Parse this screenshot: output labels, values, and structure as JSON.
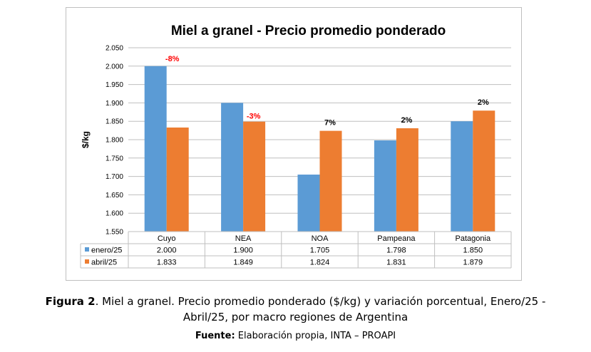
{
  "chart_data": {
    "type": "bar",
    "title": "Miel a granel - Precio promedio ponderado",
    "ylabel": "$/kg",
    "xlabel": "",
    "ylim": [
      1550,
      2050
    ],
    "yticks": [
      1550,
      1600,
      1650,
      1700,
      1750,
      1800,
      1850,
      1900,
      1950,
      2000,
      2050
    ],
    "ytick_labels": [
      "1.550",
      "1.600",
      "1.650",
      "1.700",
      "1.750",
      "1.800",
      "1.850",
      "1.900",
      "1.950",
      "2.000",
      "2.050"
    ],
    "categories": [
      "Cuyo",
      "NEA",
      "NOA",
      "Pampeana",
      "Patagonia"
    ],
    "series": [
      {
        "name": "enero/25",
        "color": "#5b9bd5",
        "values": [
          2000,
          1900,
          1705,
          1798,
          1850
        ],
        "labels": [
          "2.000",
          "1.900",
          "1.705",
          "1.798",
          "1.850"
        ]
      },
      {
        "name": "abril/25",
        "color": "#ed7d31",
        "values": [
          1833,
          1849,
          1824,
          1831,
          1879
        ],
        "labels": [
          "1.833",
          "1.849",
          "1.824",
          "1.831",
          "1.879"
        ]
      }
    ],
    "annotations": [
      {
        "category": "Cuyo",
        "text": "-8%",
        "color": "#ff0000"
      },
      {
        "category": "NEA",
        "text": "-3%",
        "color": "#ff0000"
      },
      {
        "category": "NOA",
        "text": "7%",
        "color": "#000000"
      },
      {
        "category": "Pampeana",
        "text": "2%",
        "color": "#000000"
      },
      {
        "category": "Patagonia",
        "text": "2%",
        "color": "#000000"
      }
    ],
    "grid": true,
    "legend": "data-table"
  },
  "caption": {
    "label": "Figura 2",
    "text_line1": ". Miel a granel. Precio promedio ponderado ($/kg) y variación porcentual, Enero/25 -",
    "text_line2": "Abril/25, por macro regiones de Argentina",
    "source_label": "Fuente:",
    "source_text": " Elaboración propia, INTA – PROAPI"
  }
}
